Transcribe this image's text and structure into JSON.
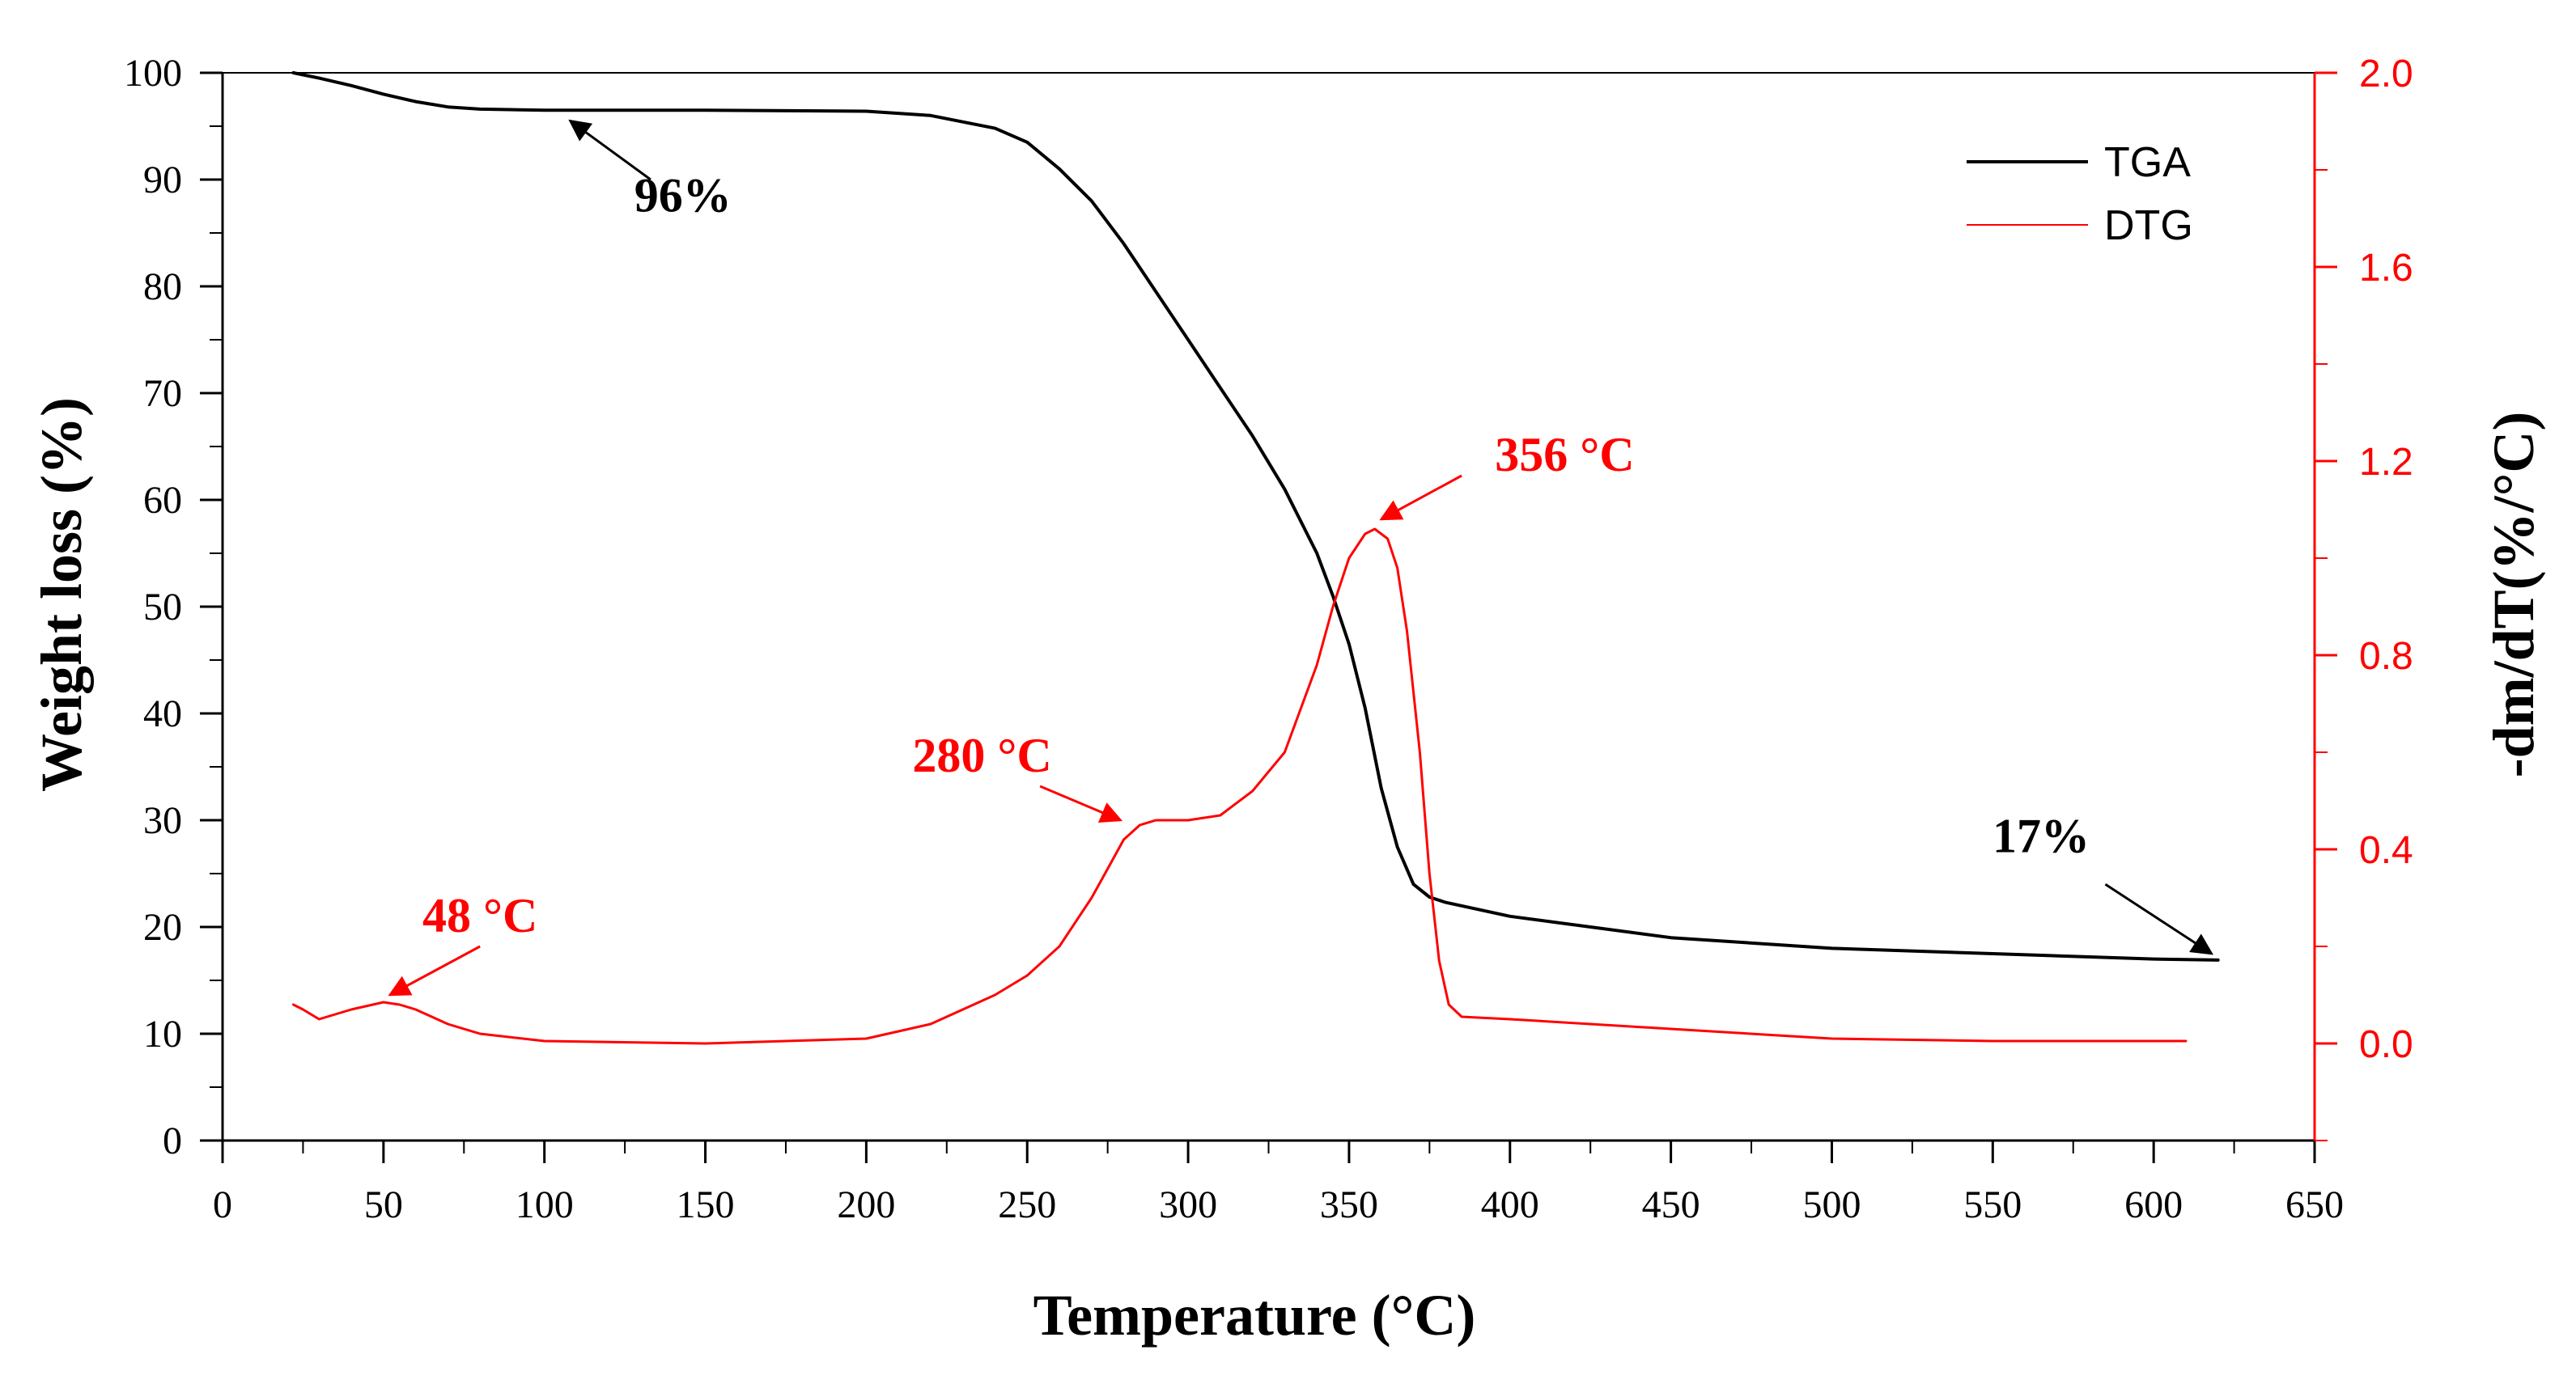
{
  "chart_data": {
    "type": "line",
    "title": "",
    "xlabel": "Temperature (°C)",
    "ylabel": "Weight loss (%)",
    "y2label": "-dm/dT(%/°C)",
    "xlim": [
      0,
      650
    ],
    "ylim": [
      0,
      100
    ],
    "y2lim": [
      -0.2,
      2.0
    ],
    "x_ticks": [
      0,
      50,
      100,
      150,
      200,
      250,
      300,
      350,
      400,
      450,
      500,
      550,
      600,
      650
    ],
    "y_ticks": [
      0,
      10,
      20,
      30,
      40,
      50,
      60,
      70,
      80,
      90,
      100
    ],
    "y2_ticks": [
      "0.0",
      "0.4",
      "0.8",
      "1.2",
      "1.6",
      "2.0"
    ],
    "legend": {
      "position": "top-right",
      "entries": [
        "TGA",
        "DTG"
      ]
    },
    "series": [
      {
        "name": "TGA",
        "axis": "left",
        "color": "#000000",
        "x": [
          22,
          30,
          40,
          50,
          60,
          70,
          80,
          100,
          150,
          200,
          220,
          240,
          250,
          260,
          270,
          280,
          290,
          300,
          310,
          320,
          330,
          340,
          345,
          350,
          355,
          360,
          365,
          370,
          375,
          380,
          400,
          450,
          500,
          550,
          600,
          620
        ],
        "y": [
          100,
          99.5,
          98.8,
          98,
          97.3,
          96.8,
          96.6,
          96.5,
          96.5,
          96.4,
          96,
          94.8,
          93.5,
          91,
          88,
          84,
          79.5,
          75,
          70.5,
          66,
          61,
          55,
          51,
          46.5,
          40.5,
          33,
          27.5,
          24,
          22.8,
          22.3,
          21,
          19,
          18,
          17.5,
          17,
          16.9
        ]
      },
      {
        "name": "DTG",
        "axis": "right",
        "color": "#ff0000",
        "x": [
          22,
          25,
          30,
          40,
          50,
          55,
          60,
          70,
          80,
          100,
          150,
          200,
          210,
          220,
          230,
          240,
          250,
          260,
          270,
          275,
          280,
          285,
          290,
          300,
          310,
          320,
          330,
          340,
          345,
          350,
          355,
          358,
          362,
          365,
          368,
          372,
          375,
          378,
          381,
          385,
          400,
          450,
          500,
          550,
          610
        ],
        "y": [
          0.08,
          0.07,
          0.05,
          0.07,
          0.085,
          0.08,
          0.07,
          0.04,
          0.02,
          0.005,
          0.0,
          0.01,
          0.025,
          0.04,
          0.07,
          0.1,
          0.14,
          0.2,
          0.3,
          0.36,
          0.42,
          0.45,
          0.46,
          0.46,
          0.47,
          0.52,
          0.6,
          0.78,
          0.9,
          1.0,
          1.05,
          1.06,
          1.04,
          0.98,
          0.85,
          0.6,
          0.35,
          0.17,
          0.08,
          0.055,
          0.05,
          0.03,
          0.01,
          0.005,
          0.005
        ]
      }
    ],
    "annotations": [
      {
        "text": "96%",
        "color": "#000000",
        "text_x": 143,
        "text_y": 87,
        "arrow_from": [
          133,
          90
        ],
        "arrow_to": [
          108,
          95.5
        ]
      },
      {
        "text": "17%",
        "color": "#000000",
        "text_x": 565,
        "text_y": 27,
        "arrow_from": [
          585,
          24
        ],
        "arrow_to": [
          618,
          17.5
        ]
      },
      {
        "text": "48 °C",
        "color": "#ff0000",
        "text_x": 80,
        "text_y": 0.23,
        "arrow_from": [
          80,
          0.2
        ],
        "arrow_to": [
          52,
          0.1
        ]
      },
      {
        "text": "280 °C",
        "color": "#ff0000",
        "text_x": 236,
        "text_y": 0.56,
        "arrow_from": [
          254,
          0.53
        ],
        "arrow_to": [
          279,
          0.46
        ]
      },
      {
        "text": "356 °C",
        "color": "#ff0000",
        "text_x": 417,
        "text_y": 1.18,
        "arrow_from": [
          385,
          1.17
        ],
        "arrow_to": [
          360,
          1.08
        ]
      }
    ]
  }
}
